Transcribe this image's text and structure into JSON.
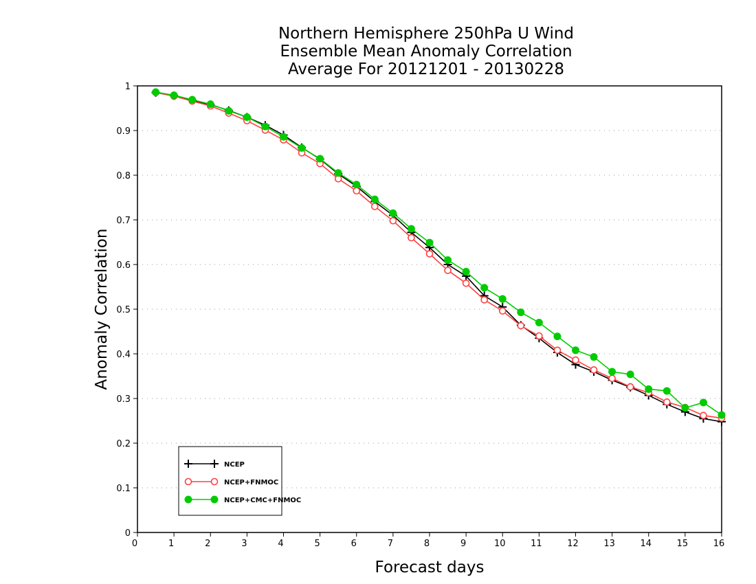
{
  "chart_data": {
    "type": "line",
    "title": [
      "Northern Hemisphere 250hPa U Wind",
      "Ensemble Mean Anomaly Correlation",
      "Average For 20121201 - 20130228"
    ],
    "xlabel": "Forecast days",
    "ylabel": "Anomaly Correlation",
    "xlim": [
      0,
      16
    ],
    "ylim": [
      0,
      1
    ],
    "xticks": [
      "0",
      "1",
      "2",
      "3",
      "4",
      "5",
      "6",
      "7",
      "8",
      "9",
      "10",
      "11",
      "12",
      "13",
      "14",
      "15",
      "16"
    ],
    "yticks": [
      "0",
      "0.1",
      "0.2",
      "0.3",
      "0.4",
      "0.5",
      "0.6",
      "0.7",
      "0.8",
      "0.9",
      "1"
    ],
    "grid": "horizontal dotted",
    "legend_position": "bottom-left",
    "x": [
      0.5,
      1,
      1.5,
      2,
      2.5,
      3,
      3.5,
      4,
      4.5,
      5,
      5.5,
      6,
      6.5,
      7,
      7.5,
      8,
      8.5,
      9,
      9.5,
      10,
      10.5,
      11,
      11.5,
      12,
      12.5,
      13,
      13.5,
      14,
      14.5,
      15,
      15.5,
      16
    ],
    "series": [
      {
        "name": "NCEP",
        "color": "#000000",
        "marker": "plus",
        "values": [
          0.985,
          0.978,
          0.968,
          0.958,
          0.945,
          0.93,
          0.912,
          0.89,
          0.862,
          0.836,
          0.803,
          0.775,
          0.741,
          0.71,
          0.672,
          0.638,
          0.6,
          0.574,
          0.53,
          0.505,
          0.464,
          0.435,
          0.403,
          0.376,
          0.36,
          0.341,
          0.325,
          0.307,
          0.287,
          0.27,
          0.255,
          0.248
        ]
      },
      {
        "name": "NCEP+FNMOC",
        "color": "#ff4040",
        "marker": "open-circle",
        "values": [
          0.985,
          0.977,
          0.966,
          0.955,
          0.939,
          0.922,
          0.901,
          0.879,
          0.85,
          0.826,
          0.792,
          0.765,
          0.73,
          0.698,
          0.66,
          0.624,
          0.587,
          0.558,
          0.521,
          0.496,
          0.463,
          0.44,
          0.408,
          0.386,
          0.364,
          0.345,
          0.326,
          0.313,
          0.292,
          0.28,
          0.262,
          0.256
        ]
      },
      {
        "name": "NCEP+CMC+FNMOC",
        "color": "#00cc00",
        "marker": "filled-circle",
        "values": [
          0.986,
          0.979,
          0.969,
          0.959,
          0.944,
          0.93,
          0.909,
          0.886,
          0.861,
          0.837,
          0.805,
          0.779,
          0.746,
          0.715,
          0.68,
          0.649,
          0.61,
          0.584,
          0.548,
          0.523,
          0.493,
          0.47,
          0.439,
          0.408,
          0.393,
          0.36,
          0.354,
          0.321,
          0.317,
          0.279,
          0.291,
          0.263
        ]
      }
    ]
  }
}
